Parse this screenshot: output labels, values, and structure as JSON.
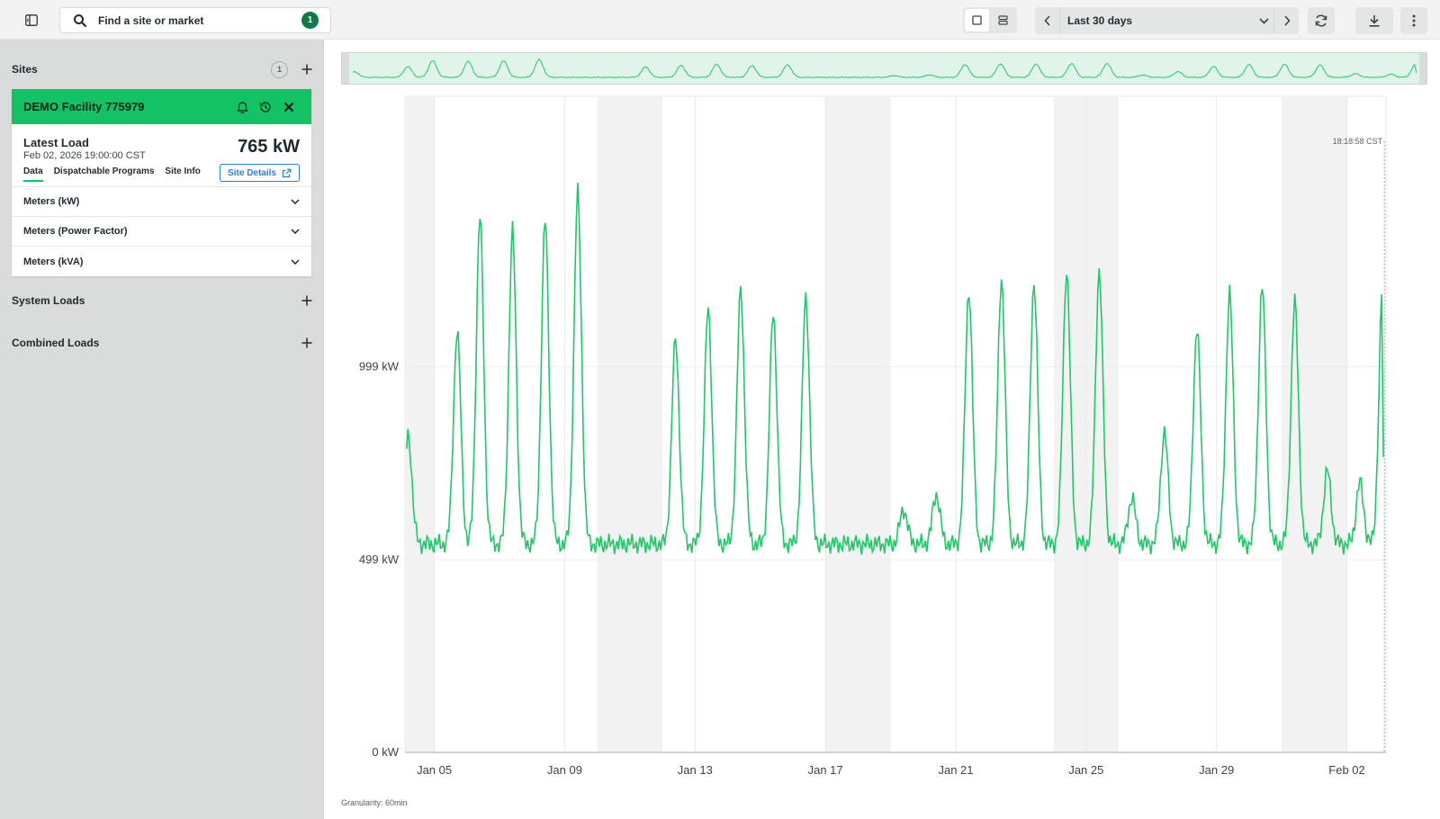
{
  "topbar": {
    "search_label": "Find a site or market",
    "search_badge": "1",
    "date_range": "Last 30 days"
  },
  "sidebar": {
    "sites_title": "Sites",
    "sites_count": "1",
    "site": {
      "name": "DEMO Facility 775979",
      "latest_title": "Latest Load",
      "latest_time": "Feb 02, 2026 19:00:00 CST",
      "latest_value": "765 kW",
      "tabs": [
        "Data",
        "Dispatchable Programs",
        "Site Info"
      ],
      "site_details_label": "Site Details",
      "meters": [
        "Meters (kW)",
        "Meters (Power Factor)",
        "Meters (kVA)"
      ]
    },
    "system_loads_title": "System Loads",
    "combined_loads_title": "Combined Loads"
  },
  "chart": {
    "granularity": "Granularity: 60min",
    "current_time_label": "18:18:58 CST"
  },
  "colors": {
    "accent": "#13c264",
    "line": "#1ec867",
    "link": "#2d7dd2",
    "badge": "#0f7a45"
  },
  "chart_data": {
    "type": "line",
    "title": "",
    "xlabel": "",
    "ylabel": "kW",
    "y_ticks": [
      0,
      499,
      999
    ],
    "y_tick_labels": [
      "0 kW",
      "499 kW",
      "999 kW"
    ],
    "ylim": [
      0,
      1700
    ],
    "x_range_days": [
      -0.9,
      29.2
    ],
    "x_ticks": [
      0,
      4,
      8,
      12,
      16,
      20,
      24,
      28
    ],
    "x_tick_labels": [
      "Jan 05",
      "Jan 09",
      "Jan 13",
      "Jan 17",
      "Jan 21",
      "Jan 25",
      "Jan 29",
      "Feb 02"
    ],
    "weekend_shading_days": [
      [
        -0.9,
        0
      ],
      [
        5,
        7
      ],
      [
        12,
        14
      ],
      [
        19,
        21
      ],
      [
        26,
        28
      ]
    ],
    "series": [
      {
        "name": "Load",
        "granularity": "60min",
        "daily_peaks": [
          {
            "day": -0.8,
            "peak": 820
          },
          {
            "day": 0.7,
            "peak": 1090
          },
          {
            "day": 1.4,
            "peak": 1390
          },
          {
            "day": 2.4,
            "peak": 1350
          },
          {
            "day": 3.4,
            "peak": 1380
          },
          {
            "day": 4.4,
            "peak": 1450
          },
          {
            "day": 7.4,
            "peak": 1070
          },
          {
            "day": 8.4,
            "peak": 1150
          },
          {
            "day": 9.4,
            "peak": 1200
          },
          {
            "day": 10.4,
            "peak": 1140
          },
          {
            "day": 11.4,
            "peak": 1180
          },
          {
            "day": 14.4,
            "peak": 630
          },
          {
            "day": 15.4,
            "peak": 670
          },
          {
            "day": 16.4,
            "peak": 1200
          },
          {
            "day": 17.4,
            "peak": 1230
          },
          {
            "day": 18.4,
            "peak": 1220
          },
          {
            "day": 19.4,
            "peak": 1250
          },
          {
            "day": 20.4,
            "peak": 1250
          },
          {
            "day": 21.4,
            "peak": 660
          },
          {
            "day": 22.4,
            "peak": 830
          },
          {
            "day": 23.4,
            "peak": 1100
          },
          {
            "day": 24.4,
            "peak": 1190
          },
          {
            "day": 25.4,
            "peak": 1210
          },
          {
            "day": 26.4,
            "peak": 1170
          },
          {
            "day": 27.4,
            "peak": 730
          },
          {
            "day": 28.4,
            "peak": 700
          },
          {
            "day": 29.1,
            "peak": 1220
          }
        ],
        "typical_low": 540,
        "last_value": 765
      }
    ]
  }
}
